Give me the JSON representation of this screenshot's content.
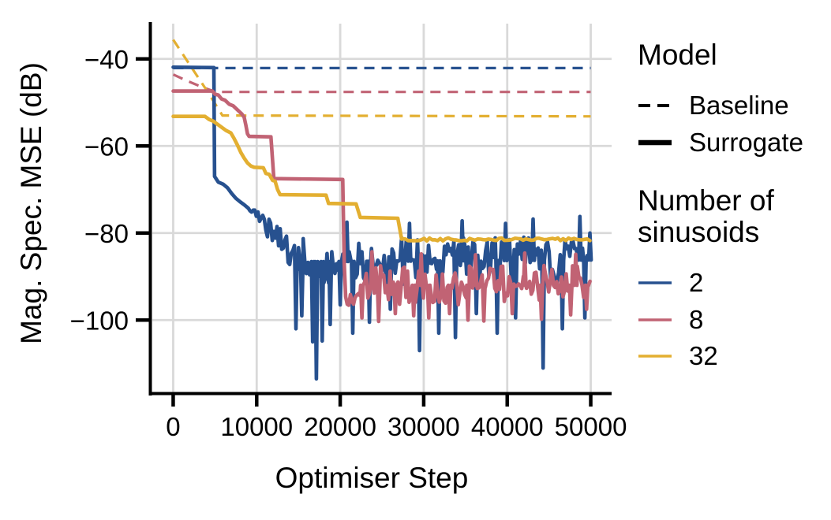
{
  "chart_data": {
    "type": "line",
    "title": "",
    "xlabel": "Optimiser Step",
    "ylabel": "Mag. Spec. MSE (dB)",
    "xlim": [
      -2500,
      52500
    ],
    "ylim": [
      -116.6,
      -31.9
    ],
    "grid": true,
    "x_ticks": [
      0,
      10000,
      20000,
      30000,
      40000,
      50000
    ],
    "x_tick_labels": [
      "0",
      "10000",
      "20000",
      "30000",
      "40000",
      "50000"
    ],
    "y_ticks": [
      -40,
      -60,
      -80,
      -100
    ],
    "y_tick_labels": [
      "−40",
      "−60",
      "−80",
      "−100"
    ],
    "colors": {
      "grid": "#d9d9d9",
      "axis": "#000000",
      "blue": "#27518f",
      "rose": "#c16374",
      "yellow": "#e3af31"
    },
    "legend": {
      "position": "right",
      "model": {
        "title": "Model",
        "items": [
          {
            "label": "Baseline",
            "style": "dashed"
          },
          {
            "label": "Surrogate",
            "style": "solid"
          }
        ]
      },
      "sinusoids": {
        "title": "Number of sinusoids",
        "items": [
          {
            "label": "2",
            "color": "#27518f"
          },
          {
            "label": "8",
            "color": "#c16374"
          },
          {
            "label": "32",
            "color": "#e3af31"
          }
        ]
      }
    },
    "series": [
      {
        "id": "baseline-2",
        "model": "Baseline",
        "sinusoids": "2",
        "color": "#27518f",
        "dash": true,
        "points": [
          [
            0,
            -42.1
          ],
          [
            50000,
            -42.1
          ]
        ]
      },
      {
        "id": "baseline-8",
        "model": "Baseline",
        "sinusoids": "8",
        "color": "#c16374",
        "dash": true,
        "points": [
          [
            0,
            -43.6
          ],
          [
            1500,
            -44.9
          ],
          [
            3000,
            -46.1
          ],
          [
            4500,
            -47.2
          ],
          [
            5700,
            -47.6
          ],
          [
            50000,
            -47.6
          ]
        ]
      },
      {
        "id": "baseline-32",
        "model": "Baseline",
        "sinusoids": "32",
        "color": "#e3af31",
        "dash": true,
        "points": [
          [
            0,
            -35.6
          ],
          [
            2000,
            -41.4
          ],
          [
            4000,
            -47.2
          ],
          [
            5900,
            -53.0
          ],
          [
            50000,
            -53.2
          ]
        ]
      },
      {
        "id": "surrogate-2",
        "model": "Surrogate",
        "sinusoids": "2",
        "color": "#27518f",
        "dash": false,
        "points": [
          [
            0,
            -41.9
          ],
          [
            4870,
            -42.0
          ],
          [
            4960,
            -67.0
          ],
          [
            5400,
            -68.3
          ],
          [
            6000,
            -68.8
          ],
          [
            6500,
            -69.6
          ],
          [
            7000,
            -70.9
          ],
          [
            7500,
            -72.0
          ],
          [
            8000,
            -72.8
          ],
          [
            8500,
            -73.5
          ],
          [
            9000,
            -74.3
          ]
        ],
        "noise": [
          {
            "from": 9200,
            "to": 15000,
            "base_from": -74.6,
            "base_to": -86.0,
            "amp_from": 1.0,
            "amp_to": 4.3,
            "step": 190
          },
          {
            "from": 15000,
            "to": 50000,
            "base_from": -86.6,
            "base_to": -86.2,
            "amp_from": 5.4,
            "amp_to": 5.4,
            "step": 190
          }
        ],
        "spikes": [
          [
            14700,
            -102
          ],
          [
            15400,
            -99
          ],
          [
            16700,
            -105
          ],
          [
            17150,
            -113.5
          ],
          [
            17850,
            -104.8
          ],
          [
            18800,
            -101
          ],
          [
            20000,
            -96.5
          ],
          [
            21500,
            -103
          ],
          [
            23500,
            -100.5
          ],
          [
            26000,
            -97.5
          ],
          [
            29500,
            -107
          ],
          [
            31800,
            -103
          ],
          [
            33800,
            -104
          ],
          [
            36300,
            -98.5
          ],
          [
            38800,
            -103
          ],
          [
            41000,
            -99.5
          ],
          [
            44300,
            -111
          ],
          [
            46600,
            -102
          ],
          [
            49300,
            -99.5
          ],
          [
            20800,
            -77.5
          ],
          [
            28300,
            -77.8
          ],
          [
            34600,
            -77.2
          ],
          [
            39800,
            -77.8
          ],
          [
            43100,
            -76.8
          ],
          [
            48700,
            -76.2
          ],
          [
            49900,
            -80
          ]
        ]
      },
      {
        "id": "surrogate-8",
        "model": "Surrogate",
        "sinusoids": "8",
        "color": "#c16374",
        "dash": false,
        "points": [
          [
            0,
            -47.4
          ],
          [
            4700,
            -47.4
          ],
          [
            5000,
            -48.1
          ],
          [
            5400,
            -48.3
          ],
          [
            5800,
            -49.2
          ],
          [
            6200,
            -49.5
          ],
          [
            6700,
            -50.4
          ],
          [
            7200,
            -50.8
          ],
          [
            7700,
            -51.7
          ],
          [
            8200,
            -52.6
          ],
          [
            8500,
            -53.4
          ],
          [
            8700,
            -55.2
          ],
          [
            8900,
            -57.2
          ],
          [
            9100,
            -57.8
          ],
          [
            11700,
            -57.9
          ],
          [
            12050,
            -67.5
          ],
          [
            20300,
            -67.7
          ],
          [
            20480,
            -87.0
          ]
        ],
        "noise": [
          {
            "from": 20650,
            "to": 50000,
            "base_from": -92.0,
            "base_to": -92.0,
            "amp_from": 4.6,
            "amp_to": 4.6,
            "step": 190
          }
        ],
        "spikes": [
          [
            22600,
            -99.5
          ],
          [
            24600,
            -100.3
          ],
          [
            26600,
            -98.5
          ],
          [
            28800,
            -99
          ],
          [
            30600,
            -99.5
          ],
          [
            33100,
            -98.5
          ],
          [
            35300,
            -100
          ],
          [
            37200,
            -100.2
          ],
          [
            40600,
            -98.5
          ],
          [
            44100,
            -99.8
          ],
          [
            47600,
            -98.8
          ],
          [
            49500,
            -97.5
          ],
          [
            23800,
            -84.3
          ],
          [
            29700,
            -84.8
          ],
          [
            36200,
            -85
          ],
          [
            42100,
            -84.6
          ],
          [
            48200,
            -84.9
          ]
        ]
      },
      {
        "id": "surrogate-32",
        "model": "Surrogate",
        "sinusoids": "32",
        "color": "#e3af31",
        "dash": false,
        "points": [
          [
            0,
            -53.2
          ],
          [
            3800,
            -53.2
          ],
          [
            4300,
            -53.9
          ],
          [
            4800,
            -54.3
          ],
          [
            5300,
            -55.0
          ],
          [
            5800,
            -55.7
          ],
          [
            6300,
            -56.4
          ],
          [
            6900,
            -57.0
          ],
          [
            7300,
            -58.3
          ],
          [
            7700,
            -59.8
          ],
          [
            8100,
            -61.5
          ],
          [
            8500,
            -62.8
          ],
          [
            8900,
            -63.9
          ],
          [
            9300,
            -64.6
          ],
          [
            9700,
            -64.9
          ],
          [
            10800,
            -65.0
          ],
          [
            11100,
            -66.3
          ],
          [
            11500,
            -66.5
          ],
          [
            11900,
            -67.9
          ],
          [
            12200,
            -68.1
          ],
          [
            12500,
            -70.0
          ],
          [
            12800,
            -71.2
          ],
          [
            18300,
            -71.3
          ],
          [
            18600,
            -73.2
          ],
          [
            21900,
            -73.3
          ],
          [
            22400,
            -76.4
          ],
          [
            26900,
            -76.6
          ],
          [
            27350,
            -81.4
          ]
        ],
        "noise": [
          {
            "from": 27500,
            "to": 50000,
            "base_from": -81.5,
            "base_to": -81.4,
            "amp_from": 0.35,
            "amp_to": 0.35,
            "step": 320
          }
        ],
        "spikes": []
      }
    ]
  }
}
